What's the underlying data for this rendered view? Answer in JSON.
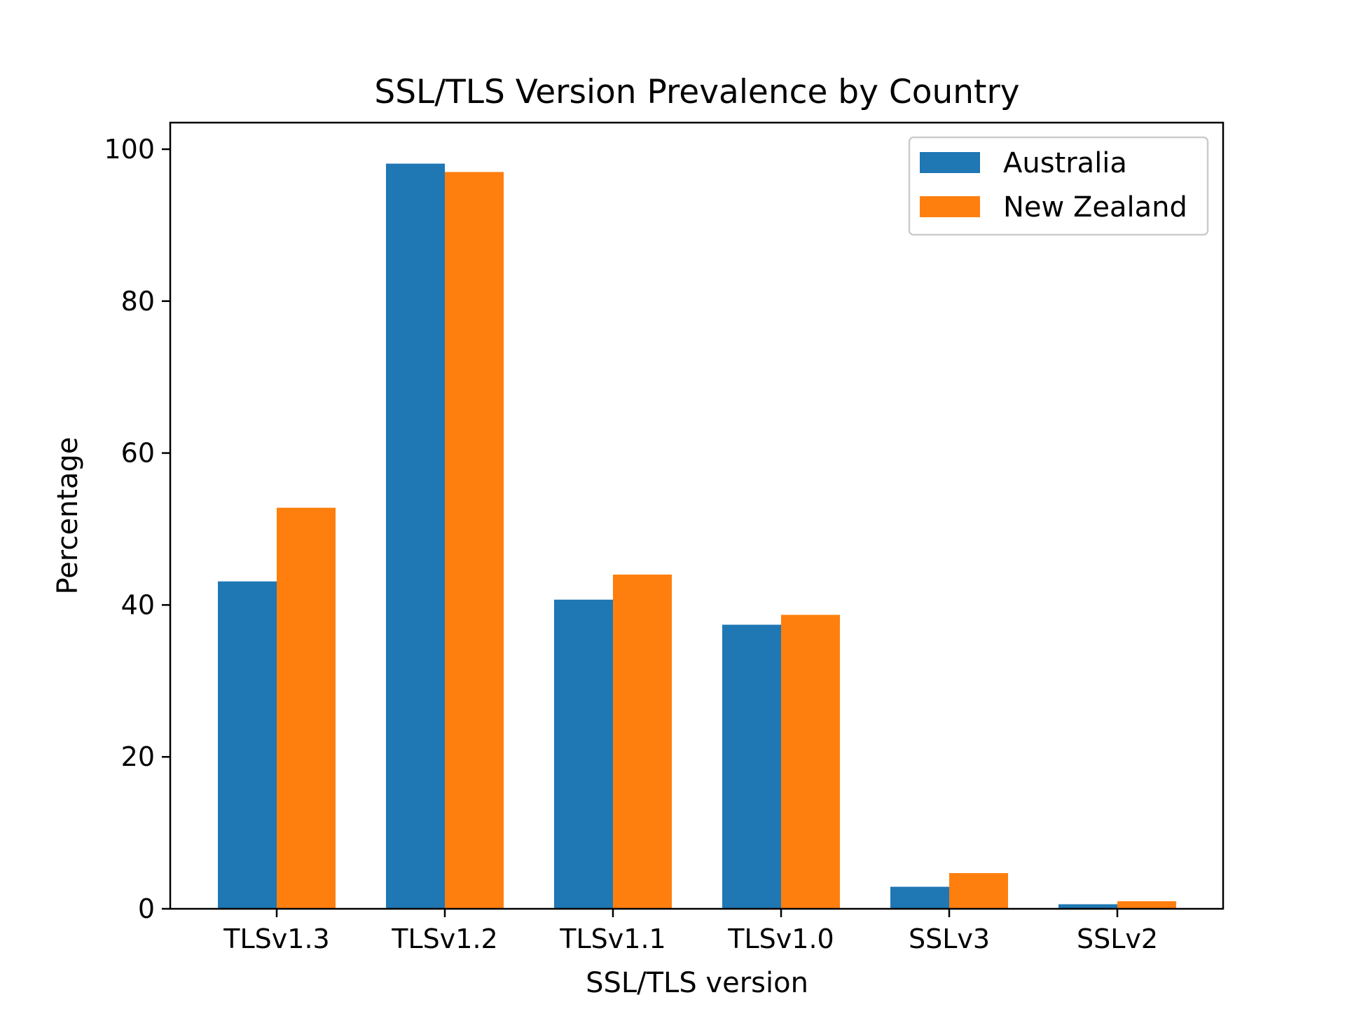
{
  "chart_data": {
    "type": "bar",
    "title": "SSL/TLS Version Prevalence by Country",
    "xlabel": "SSL/TLS version",
    "ylabel": "Percentage",
    "categories": [
      "TLSv1.3",
      "TLSv1.2",
      "TLSv1.1",
      "TLSv1.0",
      "SSLv3",
      "SSLv2"
    ],
    "series": [
      {
        "name": "Australia",
        "color": "#1f77b4",
        "values": [
          43.1,
          98.1,
          40.7,
          37.4,
          2.9,
          0.6
        ]
      },
      {
        "name": "New Zealand",
        "color": "#ff7f0e",
        "values": [
          52.8,
          97.0,
          44.0,
          38.7,
          4.7,
          1.0
        ]
      }
    ],
    "ylim": [
      0,
      103.5
    ],
    "yticks": [
      0,
      20,
      40,
      60,
      80,
      100
    ],
    "ytick_labels": [
      "0",
      "20",
      "40",
      "60",
      "80",
      "100"
    ],
    "grid": false,
    "legend_position": "top-right"
  }
}
